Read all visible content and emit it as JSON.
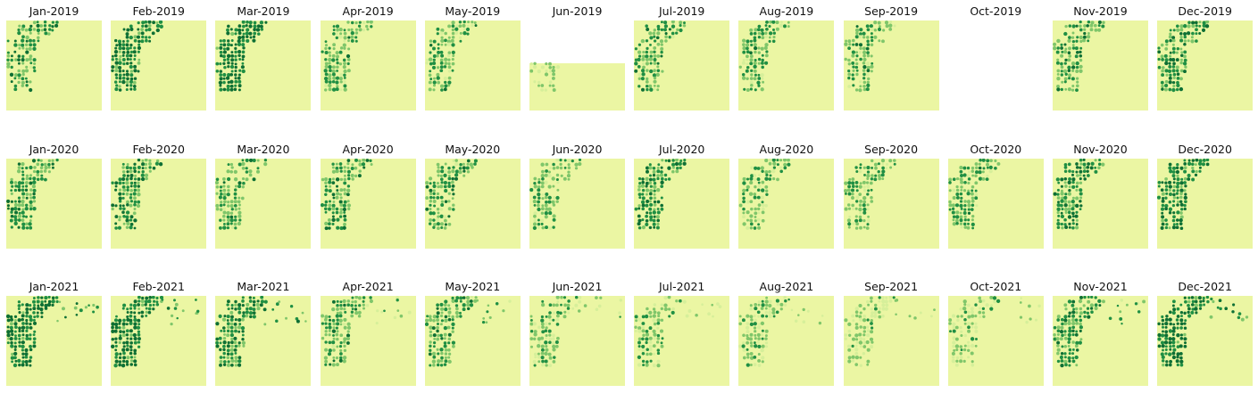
{
  "chart_data": {
    "type": "heatmap",
    "title": "",
    "colormap": "YlGn",
    "colors": {
      "background": "#ebf6a3",
      "low": "#d6ef9a",
      "mid": "#7fc66a",
      "high": "#1f8f43",
      "very_high": "#0e6f34"
    },
    "rows": [
      {
        "year": "2019",
        "panels": [
          {
            "label": "Jan-2019",
            "coverage": "full",
            "vegetation": 0.62
          },
          {
            "label": "Feb-2019",
            "coverage": "full",
            "vegetation": 0.85
          },
          {
            "label": "Mar-2019",
            "coverage": "full",
            "vegetation": 0.9
          },
          {
            "label": "Apr-2019",
            "coverage": "full",
            "vegetation": 0.6
          },
          {
            "label": "May-2019",
            "coverage": "full",
            "vegetation": 0.58
          },
          {
            "label": "Jun-2019",
            "coverage": "partial",
            "vegetation": 0.3
          },
          {
            "label": "Jul-2019",
            "coverage": "full",
            "vegetation": 0.6
          },
          {
            "label": "Aug-2019",
            "coverage": "full",
            "vegetation": 0.58
          },
          {
            "label": "Sep-2019",
            "coverage": "full",
            "vegetation": 0.6
          },
          {
            "label": "Oct-2019",
            "coverage": "none",
            "vegetation": 0
          },
          {
            "label": "Nov-2019",
            "coverage": "full",
            "vegetation": 0.65
          },
          {
            "label": "Dec-2019",
            "coverage": "full",
            "vegetation": 0.72
          }
        ]
      },
      {
        "year": "2020",
        "panels": [
          {
            "label": "Jan-2020",
            "coverage": "full",
            "vegetation": 0.7
          },
          {
            "label": "Feb-2020",
            "coverage": "full",
            "vegetation": 0.72
          },
          {
            "label": "Mar-2020",
            "coverage": "full",
            "vegetation": 0.6
          },
          {
            "label": "Apr-2020",
            "coverage": "full",
            "vegetation": 0.66
          },
          {
            "label": "May-2020",
            "coverage": "full",
            "vegetation": 0.62
          },
          {
            "label": "Jun-2020",
            "coverage": "full",
            "vegetation": 0.55
          },
          {
            "label": "Jul-2020",
            "coverage": "full",
            "vegetation": 0.72
          },
          {
            "label": "Aug-2020",
            "coverage": "full",
            "vegetation": 0.55
          },
          {
            "label": "Sep-2020",
            "coverage": "full",
            "vegetation": 0.55
          },
          {
            "label": "Oct-2020",
            "coverage": "full",
            "vegetation": 0.58
          },
          {
            "label": "Nov-2020",
            "coverage": "full",
            "vegetation": 0.75
          },
          {
            "label": "Dec-2020",
            "coverage": "full",
            "vegetation": 0.8
          }
        ]
      },
      {
        "year": "2021",
        "panels": [
          {
            "label": "Jan-2021",
            "coverage": "full",
            "vegetation": 0.88
          },
          {
            "label": "Feb-2021",
            "coverage": "full",
            "vegetation": 0.86
          },
          {
            "label": "Mar-2021",
            "coverage": "full",
            "vegetation": 0.78
          },
          {
            "label": "Apr-2021",
            "coverage": "full",
            "vegetation": 0.6
          },
          {
            "label": "May-2021",
            "coverage": "full",
            "vegetation": 0.62
          },
          {
            "label": "Jun-2021",
            "coverage": "full",
            "vegetation": 0.48
          },
          {
            "label": "Jul-2021",
            "coverage": "full",
            "vegetation": 0.45
          },
          {
            "label": "Aug-2021",
            "coverage": "full",
            "vegetation": 0.45
          },
          {
            "label": "Sep-2021",
            "coverage": "full",
            "vegetation": 0.4
          },
          {
            "label": "Oct-2021",
            "coverage": "full",
            "vegetation": 0.38
          },
          {
            "label": "Nov-2021",
            "coverage": "full",
            "vegetation": 0.7
          },
          {
            "label": "Dec-2021",
            "coverage": "full",
            "vegetation": 0.88
          }
        ]
      }
    ]
  }
}
